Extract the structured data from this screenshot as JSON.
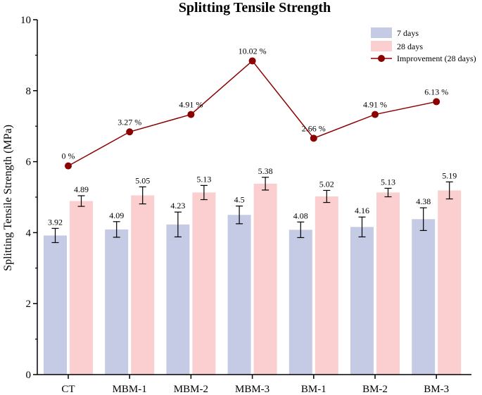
{
  "chart_data": {
    "type": "bar",
    "title": "Splitting Tensile Strength",
    "xlabel": "",
    "ylabel": "Splitting Tensile Strength (MPa)",
    "ylim": [
      0,
      10
    ],
    "yticks": [
      0,
      2,
      4,
      6,
      8,
      10
    ],
    "categories": [
      "CT",
      "MBM-1",
      "MBM-2",
      "MBM-3",
      "BM-1",
      "BM-2",
      "BM-3"
    ],
    "series": [
      {
        "name": "7 days",
        "color": "#c5cbe4",
        "values": [
          3.92,
          4.09,
          4.23,
          4.5,
          4.08,
          4.16,
          4.38
        ],
        "labels": [
          "3.92",
          "4.09",
          "4.23",
          "4.5",
          "4.08",
          "4.16",
          "4.38"
        ],
        "errors": [
          0.2,
          0.22,
          0.35,
          0.25,
          0.22,
          0.28,
          0.32
        ]
      },
      {
        "name": "28 days",
        "color": "#fbcfcf",
        "values": [
          4.89,
          5.05,
          5.13,
          5.38,
          5.02,
          5.13,
          5.19
        ],
        "labels": [
          "4.89",
          "5.05",
          "5.13",
          "5.38",
          "5.02",
          "5.13",
          "5.19"
        ],
        "errors": [
          0.15,
          0.24,
          0.2,
          0.18,
          0.17,
          0.12,
          0.24
        ]
      }
    ],
    "line_series": {
      "name": "Improvement (28 days)",
      "color": "#8b0000",
      "values": [
        5.88,
        6.84,
        7.33,
        8.84,
        6.66,
        7.33,
        7.69
      ],
      "labels": [
        "0 %",
        "3.27 %",
        "4.91 %",
        "10.02 %",
        "2.66 %",
        "4.91 %",
        "6.13 %"
      ]
    },
    "legend_position": "top-right"
  }
}
